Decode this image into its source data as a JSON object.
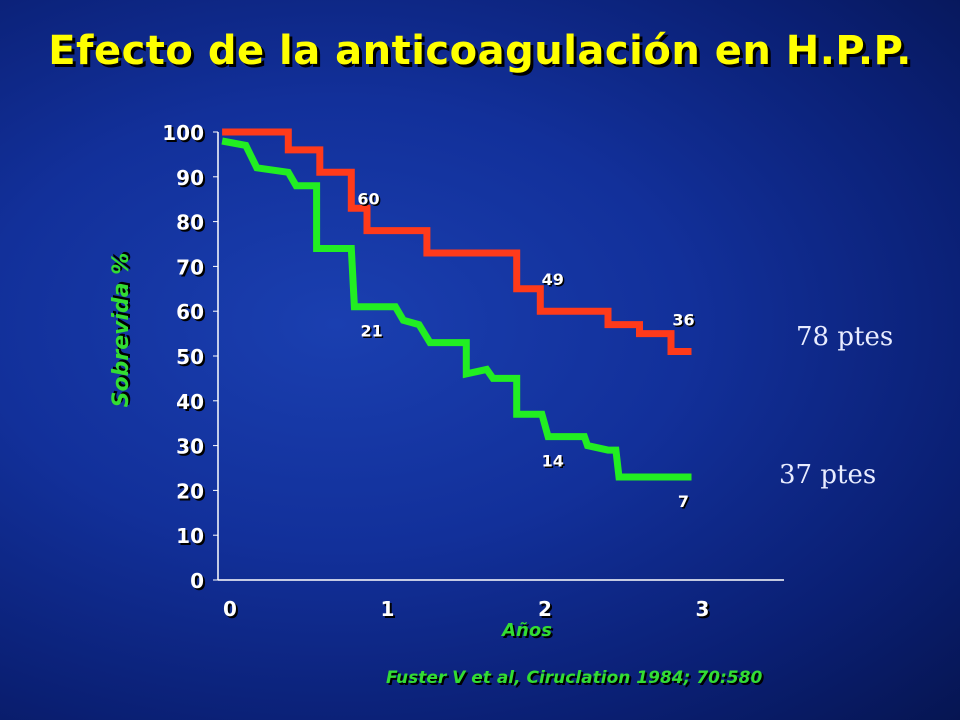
{
  "title": "Efecto de la anticoagulación en H.P.P.",
  "citation": "Fuster V et al, Ciruclation 1984; 70:580",
  "chart_data": {
    "type": "line",
    "title": "Efecto de la anticoagulación en H.P.P.",
    "xlabel": "Años",
    "ylabel": "Sobrevida %",
    "xlim": [
      0,
      3.5
    ],
    "ylim": [
      0,
      100
    ],
    "x_ticks": [
      0,
      1,
      2,
      3
    ],
    "y_ticks": [
      0,
      10,
      20,
      30,
      40,
      50,
      60,
      70,
      80,
      90,
      100
    ],
    "grid": false,
    "series": [
      {
        "name": "78 ptes",
        "color": "#ff3a1a",
        "points": [
          [
            -0.05,
            100
          ],
          [
            0.37,
            100
          ],
          [
            0.37,
            96
          ],
          [
            0.57,
            96
          ],
          [
            0.57,
            91
          ],
          [
            0.77,
            91
          ],
          [
            0.77,
            83
          ],
          [
            0.87,
            83
          ],
          [
            0.87,
            78
          ],
          [
            1.25,
            78
          ],
          [
            1.25,
            73
          ],
          [
            1.82,
            73
          ],
          [
            1.82,
            65
          ],
          [
            1.97,
            65
          ],
          [
            1.97,
            60
          ],
          [
            2.4,
            60
          ],
          [
            2.4,
            57
          ],
          [
            2.6,
            57
          ],
          [
            2.6,
            55
          ],
          [
            2.8,
            55
          ],
          [
            2.8,
            51
          ],
          [
            2.93,
            51
          ]
        ],
        "at_risk": [
          {
            "x": 0.93,
            "n": "60"
          },
          {
            "x": 2.1,
            "n": "49"
          },
          {
            "x": 2.93,
            "n": "36"
          }
        ]
      },
      {
        "name": "37 ptes",
        "color": "#22ee22",
        "points": [
          [
            -0.05,
            98
          ],
          [
            0.1,
            97
          ],
          [
            0.17,
            92
          ],
          [
            0.37,
            91
          ],
          [
            0.42,
            88
          ],
          [
            0.55,
            88
          ],
          [
            0.55,
            74
          ],
          [
            0.77,
            74
          ],
          [
            0.79,
            61
          ],
          [
            1.05,
            61
          ],
          [
            1.1,
            58
          ],
          [
            1.2,
            57
          ],
          [
            1.27,
            53
          ],
          [
            1.5,
            53
          ],
          [
            1.5,
            46
          ],
          [
            1.63,
            47
          ],
          [
            1.67,
            45
          ],
          [
            1.82,
            45
          ],
          [
            1.82,
            37
          ],
          [
            1.98,
            37
          ],
          [
            2.02,
            32
          ],
          [
            2.25,
            32
          ],
          [
            2.27,
            30
          ],
          [
            2.4,
            29
          ],
          [
            2.45,
            29
          ],
          [
            2.47,
            23
          ],
          [
            2.93,
            23
          ]
        ],
        "at_risk": [
          {
            "x": 0.95,
            "n": "21"
          },
          {
            "x": 2.1,
            "n": "14"
          },
          {
            "x": 2.93,
            "n": "7"
          }
        ]
      }
    ]
  }
}
